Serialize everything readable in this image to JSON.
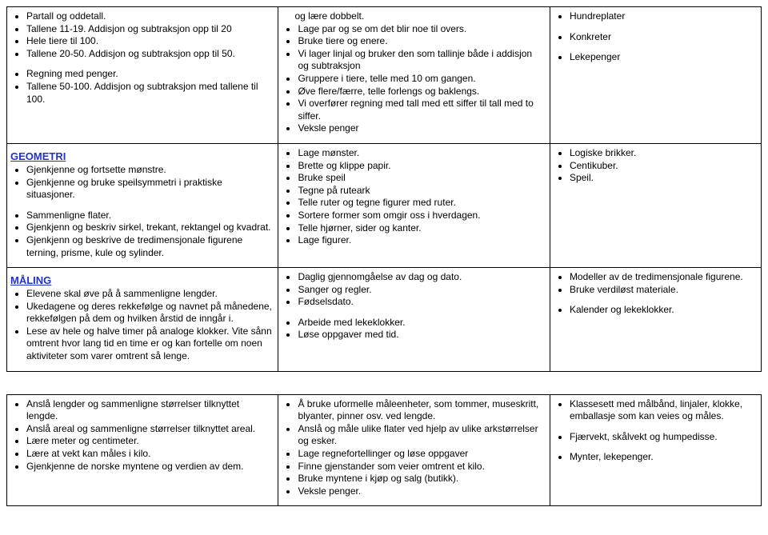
{
  "table1": {
    "r1": {
      "left": {
        "g1": [
          "Partall og oddetall.",
          "Tallene 11-19. Addisjon og subtraksjon opp til 20",
          "Hele tiere til 100.",
          "Tallene 20-50. Addisjon og subtraksjon opp til 50."
        ],
        "g2": [
          "Regning med penger.",
          "Tallene 50-100. Addisjon og subtraksjon med tallene til 100."
        ]
      },
      "mid": [
        "og lære dobbelt.",
        "Lage par og se om det blir noe til overs.",
        "Bruke tiere og enere.",
        "Vi lager linjal og bruker den som tallinje både i addisjon og subtraksjon",
        "Gruppere i tiere, telle med 10 om gangen.",
        "Øve flere/færre, telle forlengs og baklengs.",
        "Vi overfører regning med tall med ett siffer til tall med to siffer.",
        "Veksle penger"
      ],
      "right": {
        "g1": [
          "Hundreplater"
        ],
        "g2": [
          "Konkreter"
        ],
        "g3": [
          "Lekepenger"
        ]
      }
    },
    "r2": {
      "heading": "GEOMETRI",
      "left": {
        "g1": [
          "Gjenkjenne og fortsette mønstre.",
          "Gjenkjenne og bruke speilsymmetri i praktiske situasjoner."
        ],
        "g2": [
          "Sammenligne flater.",
          "Gjenkjenn og beskriv sirkel, trekant, rektangel og kvadrat.",
          "Gjenkjenn og beskrive de tredimensjonale figurene terning, prisme, kule og sylinder."
        ]
      },
      "mid": [
        "Lage mønster.",
        "Brette og klippe papir.",
        "Bruke speil",
        "Tegne på ruteark",
        "Telle ruter og tegne figurer med ruter.",
        "Sortere former som omgir oss i hverdagen.",
        "Telle hjørner, sider og kanter.",
        "Lage figurer."
      ],
      "right": [
        "Logiske brikker.",
        "Centikuber.",
        "Speil."
      ]
    },
    "r3": {
      "heading": "MÅLING",
      "left": [
        "Elevene skal øve på å sammenligne lengder.",
        "Ukedagene og deres rekkefølge og navnet på månedene, rekkefølgen på dem og hvilken årstid de inngår i.",
        "Lese av hele og halve timer på analoge klokker. Vite sånn omtrent hvor lang tid en time er og kan fortelle om noen aktiviteter som varer omtrent så lenge."
      ],
      "mid": {
        "g1": [
          "Daglig gjennomgåelse av dag og dato.",
          "Sanger og regler.",
          "Fødselsdato."
        ],
        "g2": [
          "Arbeide med lekeklokker.",
          "Løse oppgaver med tid."
        ]
      },
      "right": {
        "g1": [
          "Modeller av de tredimensjonale figurene.",
          "Bruke verdiløst materiale."
        ],
        "g2": [
          "Kalender og lekeklokker."
        ]
      }
    }
  },
  "table2": {
    "left": [
      "Anslå lengder og sammenligne størrelser tilknyttet lengde.",
      "Anslå areal og sammenligne størrelser tilknyttet areal.",
      "Lære meter og centimeter.",
      "Lære at vekt kan måles i kilo.",
      "Gjenkjenne de norske myntene og verdien av dem."
    ],
    "mid": [
      "Å bruke uformelle måleenheter, som tommer, museskritt, blyanter, pinner osv. ved lengde.",
      "Anslå og måle ulike flater ved hjelp av ulike arkstørrelser og esker.",
      "Lage regnefortellinger og løse oppgaver",
      "Finne gjenstander som veier omtrent et kilo.",
      "Bruke myntene i kjøp og salg (butikk).",
      "Veksle penger."
    ],
    "right": {
      "g1": [
        "Klassesett med målbånd, linjaler, klokke, emballasje som kan veies og måles."
      ],
      "g2": [
        "Fjærvekt, skålvekt og humpedisse."
      ],
      "g3": [
        "Mynter, lekepenger."
      ]
    }
  }
}
